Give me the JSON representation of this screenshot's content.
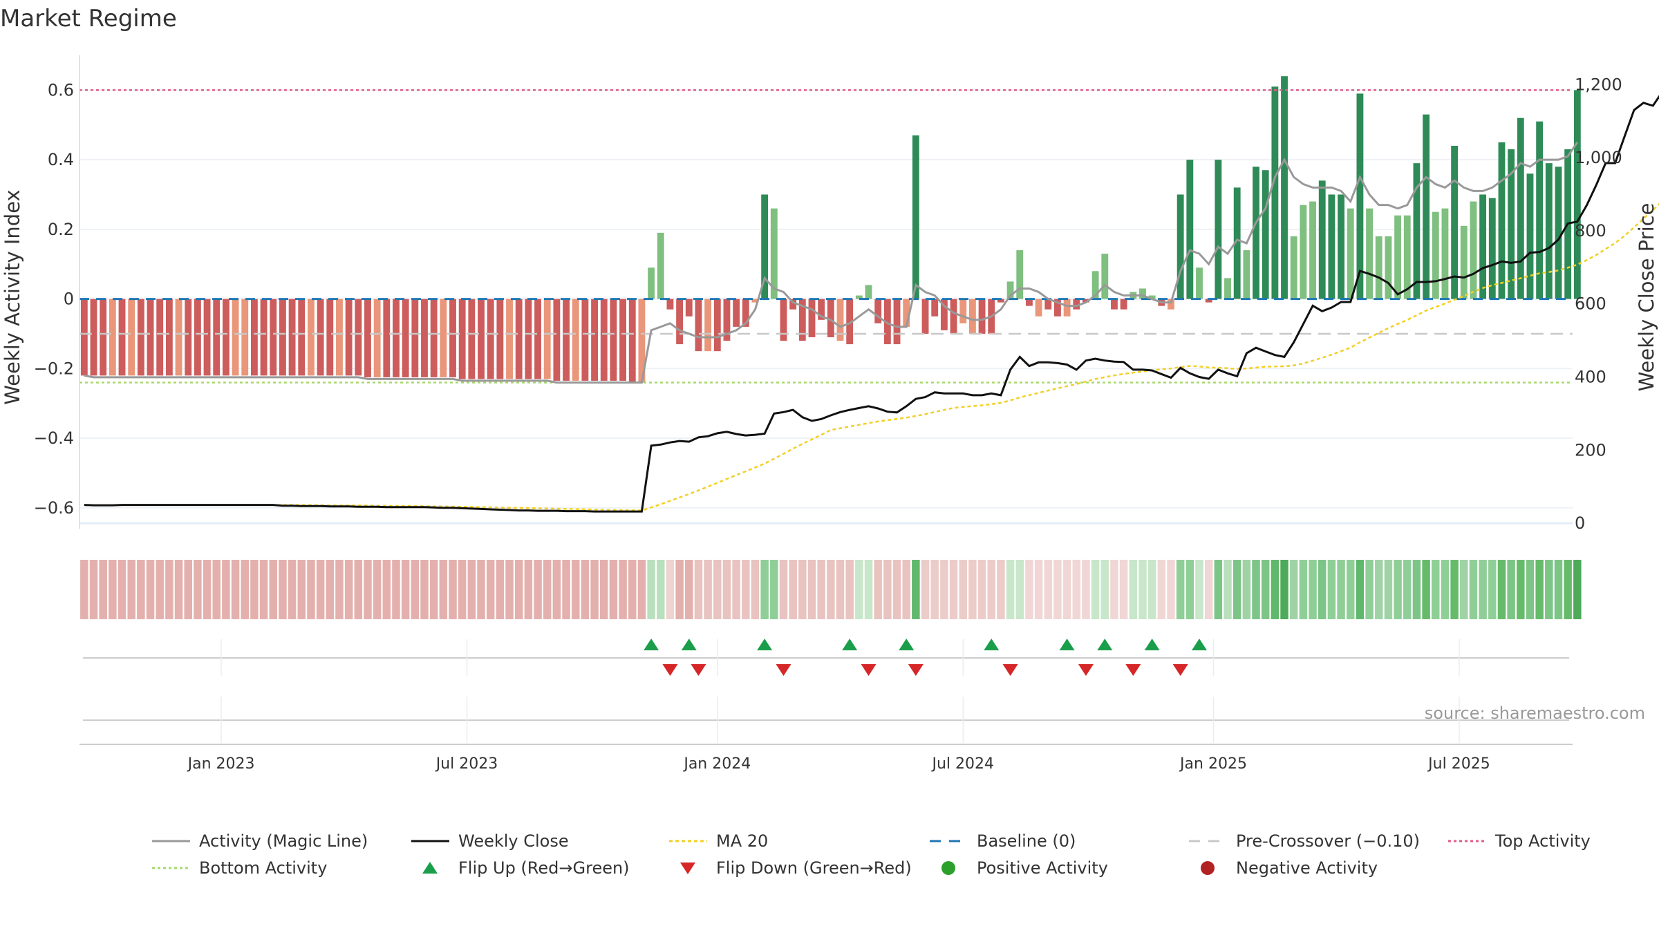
{
  "chart_data": {
    "type": "bar",
    "title": "Market Regime",
    "ylabel_left": "Weekly Activity Index",
    "ylabel_right": "Weekly Close Price",
    "source": "source: sharemaestro.com",
    "ylim_left": [
      -0.66,
      0.7
    ],
    "ylim_right": [
      -15,
      1280
    ],
    "left_ticks": [
      {
        "v": 0.6,
        "label": "0.6"
      },
      {
        "v": 0.4,
        "label": "0.4"
      },
      {
        "v": 0.2,
        "label": "0.2"
      },
      {
        "v": 0,
        "label": "0"
      },
      {
        "v": -0.2,
        "label": "−0.2"
      },
      {
        "v": -0.4,
        "label": "−0.4"
      },
      {
        "v": -0.6,
        "label": "−0.6"
      }
    ],
    "right_ticks": [
      {
        "v": 1200,
        "label": "1,200"
      },
      {
        "v": 1000,
        "label": "1,000"
      },
      {
        "v": 800,
        "label": "800"
      },
      {
        "v": 600,
        "label": "600"
      },
      {
        "v": 400,
        "label": "400"
      },
      {
        "v": 200,
        "label": "200"
      },
      {
        "v": 0,
        "label": "0"
      }
    ],
    "date_ticks": [
      {
        "week": 14.5,
        "label": "Jan 2023"
      },
      {
        "week": 40.5,
        "label": "Jul 2023"
      },
      {
        "week": 67,
        "label": "Jan 2024"
      },
      {
        "week": 93,
        "label": "Jul 2024"
      },
      {
        "week": 119.5,
        "label": "Jan 2025"
      },
      {
        "week": 145.5,
        "label": "Jul 2025"
      }
    ],
    "reference_lines": {
      "top_activity": 0.6,
      "bottom_activity": -0.24,
      "baseline": 0,
      "pre_crossover": -0.1
    },
    "weeks": 158,
    "activity": [
      -0.22,
      -0.22,
      -0.22,
      -0.22,
      -0.22,
      -0.22,
      -0.22,
      -0.22,
      -0.22,
      -0.22,
      -0.22,
      -0.22,
      -0.22,
      -0.22,
      -0.22,
      -0.22,
      -0.22,
      -0.22,
      -0.22,
      -0.22,
      -0.22,
      -0.22,
      -0.22,
      -0.22,
      -0.22,
      -0.22,
      -0.22,
      -0.22,
      -0.22,
      -0.22,
      -0.225,
      -0.225,
      -0.225,
      -0.225,
      -0.225,
      -0.225,
      -0.225,
      -0.225,
      -0.225,
      -0.225,
      -0.23,
      -0.23,
      -0.23,
      -0.23,
      -0.23,
      -0.23,
      -0.23,
      -0.23,
      -0.23,
      -0.23,
      -0.235,
      -0.235,
      -0.235,
      -0.235,
      -0.235,
      -0.235,
      -0.235,
      -0.235,
      -0.24,
      -0.24,
      0.09,
      0.19,
      -0.03,
      -0.13,
      -0.05,
      -0.15,
      -0.15,
      -0.15,
      -0.12,
      -0.08,
      -0.08,
      -0.01,
      0.3,
      0.26,
      -0.12,
      -0.03,
      -0.12,
      -0.11,
      -0.06,
      -0.11,
      -0.12,
      -0.13,
      0.01,
      0.04,
      -0.07,
      -0.13,
      -0.13,
      -0.08,
      0.47,
      -0.1,
      -0.05,
      -0.09,
      -0.1,
      -0.07,
      -0.1,
      -0.1,
      -0.1,
      -0.01,
      0.05,
      0.14,
      -0.02,
      -0.05,
      -0.03,
      -0.05,
      -0.05,
      -0.03,
      -0.01,
      0.08,
      0.13,
      -0.03,
      -0.03,
      0.02,
      0.03,
      0.01,
      -0.02,
      -0.03,
      0.3,
      0.4,
      0.09,
      -0.01,
      0.4,
      0.06,
      0.32,
      0.14,
      0.38,
      0.37,
      0.61,
      0.64,
      0.18,
      0.27,
      0.28,
      0.34,
      0.3,
      0.3,
      0.26,
      0.59,
      0.26,
      0.18,
      0.18,
      0.24,
      0.24,
      0.39,
      0.53,
      0.25,
      0.26,
      0.44,
      0.21,
      0.28,
      0.3,
      0.29,
      0.45,
      0.43,
      0.52,
      0.36,
      0.51,
      0.39,
      0.38,
      0.43,
      0.6
    ],
    "magic_line": [
      -0.22,
      -0.225,
      -0.225,
      -0.225,
      -0.225,
      -0.225,
      -0.225,
      -0.225,
      -0.225,
      -0.225,
      -0.225,
      -0.225,
      -0.225,
      -0.225,
      -0.225,
      -0.225,
      -0.225,
      -0.225,
      -0.225,
      -0.225,
      -0.225,
      -0.225,
      -0.225,
      -0.225,
      -0.225,
      -0.225,
      -0.225,
      -0.225,
      -0.225,
      -0.225,
      -0.23,
      -0.23,
      -0.23,
      -0.23,
      -0.23,
      -0.23,
      -0.23,
      -0.23,
      -0.23,
      -0.23,
      -0.235,
      -0.235,
      -0.235,
      -0.235,
      -0.235,
      -0.235,
      -0.235,
      -0.235,
      -0.235,
      -0.235,
      -0.24,
      -0.24,
      -0.24,
      -0.24,
      -0.24,
      -0.24,
      -0.24,
      -0.24,
      -0.24,
      -0.24,
      -0.09,
      -0.08,
      -0.07,
      -0.09,
      -0.1,
      -0.11,
      -0.11,
      -0.11,
      -0.1,
      -0.09,
      -0.07,
      -0.03,
      0.06,
      0.03,
      0.02,
      -0.01,
      -0.02,
      -0.03,
      -0.05,
      -0.06,
      -0.08,
      -0.07,
      -0.05,
      -0.03,
      -0.05,
      -0.07,
      -0.08,
      -0.08,
      0.04,
      0.02,
      0.01,
      -0.02,
      -0.04,
      -0.05,
      -0.06,
      -0.06,
      -0.05,
      -0.03,
      0.01,
      0.03,
      0.03,
      0.02,
      0.0,
      -0.01,
      -0.02,
      -0.02,
      -0.01,
      0.01,
      0.04,
      0.02,
      0.01,
      0.01,
      0.01,
      0.0,
      -0.01,
      -0.01,
      0.08,
      0.14,
      0.13,
      0.1,
      0.15,
      0.13,
      0.17,
      0.16,
      0.22,
      0.26,
      0.35,
      0.4,
      0.35,
      0.33,
      0.32,
      0.32,
      0.32,
      0.31,
      0.28,
      0.35,
      0.3,
      0.27,
      0.27,
      0.26,
      0.27,
      0.32,
      0.35,
      0.33,
      0.32,
      0.34,
      0.32,
      0.31,
      0.31,
      0.32,
      0.34,
      0.36,
      0.39,
      0.38,
      0.4,
      0.4,
      0.4,
      0.41,
      0.45
    ],
    "close": [
      50,
      49,
      49,
      49,
      50,
      50,
      50,
      50,
      50,
      50,
      50,
      50,
      50,
      50,
      50,
      50,
      50,
      50,
      50,
      50,
      50,
      48,
      48,
      47,
      47,
      47,
      46,
      46,
      46,
      45,
      45,
      45,
      44,
      44,
      44,
      44,
      44,
      43,
      42,
      42,
      41,
      40,
      39,
      38,
      37,
      36,
      35,
      35,
      34,
      34,
      34,
      33,
      33,
      33,
      32,
      32,
      32,
      32,
      32,
      32,
      212,
      215,
      221,
      225,
      223,
      235,
      238,
      246,
      250,
      244,
      240,
      242,
      245,
      300,
      304,
      310,
      290,
      280,
      285,
      295,
      304,
      310,
      315,
      320,
      314,
      305,
      303,
      320,
      340,
      345,
      358,
      355,
      355,
      355,
      350,
      350,
      355,
      350,
      420,
      455,
      430,
      440,
      440,
      438,
      434,
      420,
      445,
      450,
      445,
      442,
      441,
      420,
      420,
      418,
      408,
      398,
      425,
      410,
      400,
      395,
      420,
      410,
      402,
      465,
      480,
      470,
      460,
      455,
      495,
      545,
      595,
      580,
      590,
      605,
      605,
      690,
      682,
      672,
      657,
      626,
      640,
      660,
      660,
      662,
      668,
      675,
      672,
      682,
      698,
      706,
      716,
      712,
      716,
      740,
      742,
      753,
      776,
      820,
      825,
      870,
      925,
      985,
      985,
      1058,
      1130,
      1150,
      1142,
      1180,
      1158,
      1178,
      1207,
      1197
    ]
  },
  "strip": {
    "colors": [
      "#e3b0ad",
      "#e3b0ad",
      "#e3b0ad",
      "#e3b0ad",
      "#e3b0ad",
      "#e3b0ad",
      "#e3b0ad",
      "#e3b0ad",
      "#e3b0ad",
      "#e3b0ad",
      "#e3b0ad",
      "#e3b0ad",
      "#e3b0ad",
      "#e3b0ad",
      "#e3b0ad",
      "#e3b0ad",
      "#e3b0ad",
      "#e3b0ad",
      "#e3b0ad",
      "#e3b0ad",
      "#e3b0ad",
      "#e3b0ad",
      "#e3b0ad",
      "#e3b0ad",
      "#e3b0ad",
      "#e3b0ad",
      "#e3b0ad",
      "#e3b0ad",
      "#e3b0ad",
      "#e3b0ad",
      "#e3b0ad",
      "#e3b0ad",
      "#e3b0ad",
      "#e3b0ad",
      "#e3b0ad",
      "#e3b0ad",
      "#e3b0ad",
      "#e3b0ad",
      "#e3b0ad",
      "#e3b0ad",
      "#e3b0ad",
      "#e3b0ad",
      "#e3b0ad",
      "#e3b0ad",
      "#e3b0ad",
      "#e3b0ad",
      "#e3b0ad",
      "#e3b0ad",
      "#e3b0ad",
      "#e3b0ad",
      "#e3b0ad",
      "#e3b0ad",
      "#e3b0ad",
      "#e3b0ad",
      "#e3b0ad",
      "#e3b0ad",
      "#e3b0ad",
      "#e3b0ad",
      "#e3b0ad",
      "#e3b0ad",
      "#b9dfbc",
      "#b9dfbc",
      "#eed3d1",
      "#e3b0ad",
      "#e3b0ad",
      "#e8c3c0",
      "#e8c3c0",
      "#e8c3c0",
      "#e8c3c0",
      "#e8c3c0",
      "#e8c3c0",
      "#e8c3c0",
      "#8fcf97",
      "#8fcf97",
      "#e8c3c0",
      "#e8c3c0",
      "#e8c3c0",
      "#e8c3c0",
      "#e8c3c0",
      "#e8c3c0",
      "#e8c3c0",
      "#e8c3c0",
      "#c8e6c9",
      "#c8e6c9",
      "#e8c3c0",
      "#e8c3c0",
      "#e8c3c0",
      "#e8c3c0",
      "#5fb86b",
      "#ecccc9",
      "#ecccc9",
      "#ecccc9",
      "#ecccc9",
      "#ecccc9",
      "#ecccc9",
      "#ecccc9",
      "#ecccc9",
      "#ecccc9",
      "#c8e6c9",
      "#c8e6c9",
      "#f0d6d4",
      "#f0d6d4",
      "#f0d6d4",
      "#f0d6d4",
      "#f0d6d4",
      "#f0d6d4",
      "#f0d6d4",
      "#c8e6c9",
      "#c8e6c9",
      "#f0d6d4",
      "#f0d6d4",
      "#c8e6c9",
      "#c8e6c9",
      "#c8e6c9",
      "#f0d6d4",
      "#f0d6d4",
      "#8fcf97",
      "#8fcf97",
      "#c8e6c9",
      "#f0d6d4",
      "#7dc487",
      "#b9dfbc",
      "#7dc487",
      "#9fd3a5",
      "#7dc487",
      "#7dc487",
      "#5fb86b",
      "#4daa5a",
      "#9fd3a5",
      "#8fcf97",
      "#8fcf97",
      "#7dc487",
      "#8fcf97",
      "#8fcf97",
      "#8fcf97",
      "#5fb86b",
      "#8fcf97",
      "#9fd3a5",
      "#9fd3a5",
      "#8fcf97",
      "#8fcf97",
      "#7dc487",
      "#66bb6a",
      "#8fcf97",
      "#8fcf97",
      "#66bb6a",
      "#9fd3a5",
      "#8fcf97",
      "#8fcf97",
      "#8fcf97",
      "#66bb6a",
      "#7dc487",
      "#66bb6a",
      "#7dc487",
      "#66bb6a",
      "#7dc487",
      "#7dc487",
      "#66bb6a",
      "#4daa5a"
    ]
  },
  "flips": {
    "up_weeks": [
      60,
      64,
      72,
      81,
      87,
      96,
      104,
      108,
      113,
      118
    ],
    "down_weeks": [
      62,
      65,
      74,
      83,
      88,
      98,
      106,
      111,
      116
    ]
  },
  "colors": {
    "bar_pos_strong": "#2e8b57",
    "bar_pos_weak": "#7fbf7f",
    "bar_neg_strong": "#cd5c5c",
    "bar_neg_weak": "#e9967a",
    "magic_line": "#999999",
    "close_line": "#111111",
    "ma_line": "#f2d024",
    "baseline": "#1f77b4",
    "pre_crossover": "#c8c8c8",
    "top_activity": "#e05c8a",
    "bottom_activity": "#a6d96a",
    "flip_up": "#1a9e4a",
    "flip_down": "#d62728",
    "positive_dot": "#2ca02c",
    "negative_dot": "#b22222"
  },
  "legend": [
    {
      "key": "magic",
      "label": "Activity (Magic Line)"
    },
    {
      "key": "close",
      "label": "Weekly Close"
    },
    {
      "key": "ma",
      "label": "MA 20"
    },
    {
      "key": "baseline",
      "label": "Baseline (0)"
    },
    {
      "key": "precross",
      "label": "Pre-Crossover (−0.10)"
    },
    {
      "key": "top",
      "label": "Top Activity"
    },
    {
      "key": "bottom",
      "label": "Bottom Activity"
    },
    {
      "key": "flipup",
      "label": "Flip Up (Red→Green)"
    },
    {
      "key": "flipdown",
      "label": "Flip Down (Green→Red)"
    },
    {
      "key": "posdot",
      "label": "Positive Activity"
    },
    {
      "key": "negdot",
      "label": "Negative Activity"
    }
  ]
}
